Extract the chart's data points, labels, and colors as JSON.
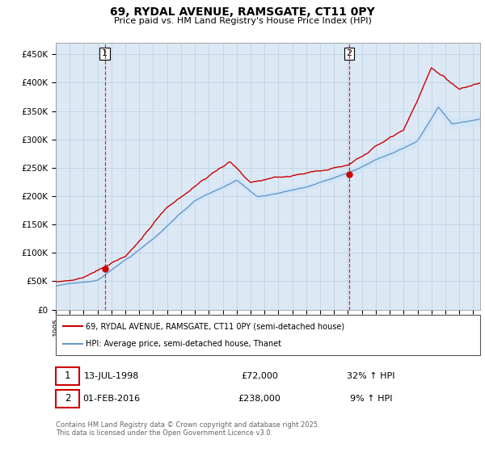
{
  "title": "69, RYDAL AVENUE, RAMSGATE, CT11 0PY",
  "subtitle": "Price paid vs. HM Land Registry's House Price Index (HPI)",
  "ylim": [
    0,
    470000
  ],
  "yticks": [
    0,
    50000,
    100000,
    150000,
    200000,
    250000,
    300000,
    350000,
    400000,
    450000
  ],
  "ytick_labels": [
    "£0",
    "£50K",
    "£100K",
    "£150K",
    "£200K",
    "£250K",
    "£300K",
    "£350K",
    "£400K",
    "£450K"
  ],
  "xlim_start": 1995.0,
  "xlim_end": 2025.5,
  "hpi_color": "#6699cc",
  "hpi_fill_color": "#d0e4f7",
  "price_color": "#cc0000",
  "marker1_x": 1998.53,
  "marker1_y": 72000,
  "marker2_x": 2016.08,
  "marker2_y": 238000,
  "legend_line1": "69, RYDAL AVENUE, RAMSGATE, CT11 0PY (semi-detached house)",
  "legend_line2": "HPI: Average price, semi-detached house, Thanet",
  "table_row1_date": "13-JUL-1998",
  "table_row1_price": "£72,000",
  "table_row1_hpi": "32% ↑ HPI",
  "table_row2_date": "01-FEB-2016",
  "table_row2_price": "£238,000",
  "table_row2_hpi": "9% ↑ HPI",
  "footer": "Contains HM Land Registry data © Crown copyright and database right 2025.\nThis data is licensed under the Open Government Licence v3.0.",
  "bg_color": "#ffffff",
  "plot_bg_color": "#dce9f5",
  "grid_color": "#b8cfe0"
}
